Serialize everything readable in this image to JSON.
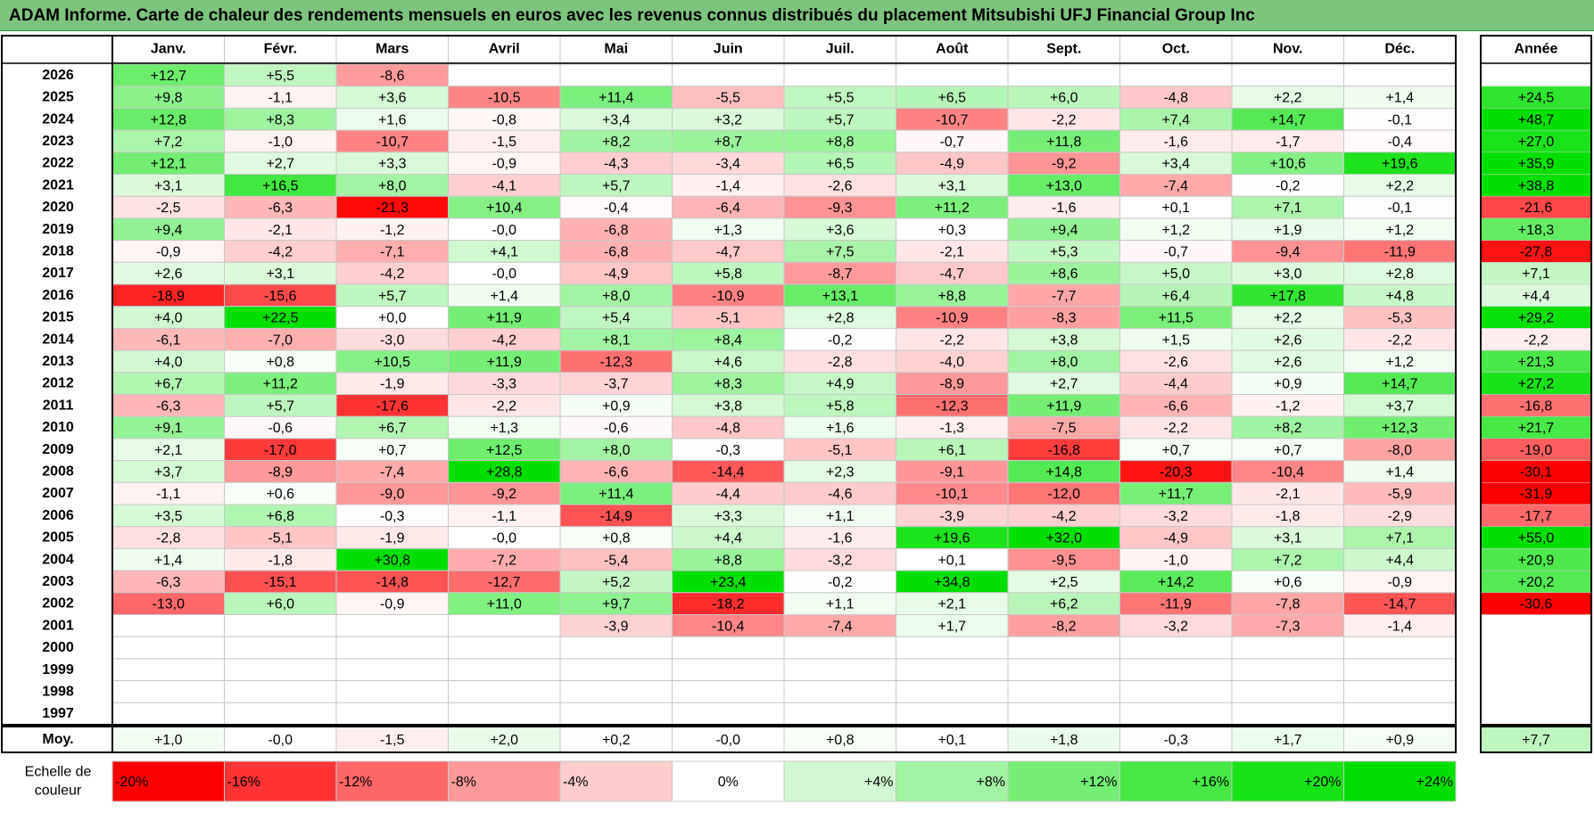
{
  "title": "ADAM Informe. Carte de chaleur des rendements mensuels en euros avec les revenus connus distribués du placement Mitsubishi UFJ Financial Group Inc",
  "colors": {
    "title_bg": "#7cc57c",
    "positive": "#00e000",
    "negative": "#ff0000",
    "grid": "#c8c8c8",
    "frame": "#000000"
  },
  "chart_data": {
    "type": "heatmap",
    "title": "ADAM Informe. Carte de chaleur des rendements mensuels en euros avec les revenus connus distribués du placement Mitsubishi UFJ Financial Group Inc",
    "months": [
      "Janv.",
      "Févr.",
      "Mars",
      "Avril",
      "Mai",
      "Juin",
      "Juil.",
      "Août",
      "Sept.",
      "Oct.",
      "Nov.",
      "Déc."
    ],
    "year_header": "Année",
    "rows": [
      {
        "year": "2026",
        "values": [
          "+12,7",
          "+5,5",
          "-8,6",
          "",
          "",
          "",
          "",
          "",
          "",
          "",
          "",
          ""
        ],
        "annual": ""
      },
      {
        "year": "2025",
        "values": [
          "+9,8",
          "-1,1",
          "+3,6",
          "-10,5",
          "+11,4",
          "-5,5",
          "+5,5",
          "+6,5",
          "+6,0",
          "-4,8",
          "+2,2",
          "+1,4"
        ],
        "annual": "+24,5"
      },
      {
        "year": "2024",
        "values": [
          "+12,8",
          "+8,3",
          "+1,6",
          "-0,8",
          "+3,4",
          "+3,2",
          "+5,7",
          "-10,7",
          "-2,2",
          "+7,4",
          "+14,7",
          "-0,1"
        ],
        "annual": "+48,7"
      },
      {
        "year": "2023",
        "values": [
          "+7,2",
          "-1,0",
          "-10,7",
          "-1,5",
          "+8,2",
          "+8,7",
          "+8,8",
          "-0,7",
          "+11,8",
          "-1,6",
          "-1,7",
          "-0,4"
        ],
        "annual": "+27,0"
      },
      {
        "year": "2022",
        "values": [
          "+12,1",
          "+2,7",
          "+3,3",
          "-0,9",
          "-4,3",
          "-3,4",
          "+6,5",
          "-4,9",
          "-9,2",
          "+3,4",
          "+10,6",
          "+19,6"
        ],
        "annual": "+35,9"
      },
      {
        "year": "2021",
        "values": [
          "+3,1",
          "+16,5",
          "+8,0",
          "-4,1",
          "+5,7",
          "-1,4",
          "-2,6",
          "+3,1",
          "+13,0",
          "-7,4",
          "-0,2",
          "+2,2"
        ],
        "annual": "+38,8"
      },
      {
        "year": "2020",
        "values": [
          "-2,5",
          "-6,3",
          "-21,3",
          "+10,4",
          "-0,4",
          "-6,4",
          "-9,3",
          "+11,2",
          "-1,6",
          "+0,1",
          "+7,1",
          "-0,1"
        ],
        "annual": "-21,6"
      },
      {
        "year": "2019",
        "values": [
          "+9,4",
          "-2,1",
          "-1,2",
          "-0,0",
          "-6,8",
          "+1,3",
          "+3,6",
          "+0,3",
          "+9,4",
          "+1,2",
          "+1,9",
          "+1,2"
        ],
        "annual": "+18,3"
      },
      {
        "year": "2018",
        "values": [
          "-0,9",
          "-4,2",
          "-7,1",
          "+4,1",
          "-6,8",
          "-4,7",
          "+7,5",
          "-2,1",
          "+5,3",
          "-0,7",
          "-9,4",
          "-11,9"
        ],
        "annual": "-27,8"
      },
      {
        "year": "2017",
        "values": [
          "+2,6",
          "+3,1",
          "-4,2",
          "-0,0",
          "-4,9",
          "+5,8",
          "-8,7",
          "-4,7",
          "+8,6",
          "+5,0",
          "+3,0",
          "+2,8"
        ],
        "annual": "+7,1"
      },
      {
        "year": "2016",
        "values": [
          "-18,9",
          "-15,6",
          "+5,7",
          "+1,4",
          "+8,0",
          "-10,9",
          "+13,1",
          "+8,8",
          "-7,7",
          "+6,4",
          "+17,8",
          "+4,8"
        ],
        "annual": "+4,4"
      },
      {
        "year": "2015",
        "values": [
          "+4,0",
          "+22,5",
          "+0,0",
          "+11,9",
          "+5,4",
          "-5,1",
          "+2,8",
          "-10,9",
          "-8,3",
          "+11,5",
          "+2,2",
          "-5,3"
        ],
        "annual": "+29,2"
      },
      {
        "year": "2014",
        "values": [
          "-6,1",
          "-7,0",
          "-3,0",
          "-4,2",
          "+8,1",
          "+8,4",
          "-0,2",
          "-2,2",
          "+3,8",
          "+1,5",
          "+2,6",
          "-2,2"
        ],
        "annual": "-2,2"
      },
      {
        "year": "2013",
        "values": [
          "+4,0",
          "+0,8",
          "+10,5",
          "+11,9",
          "-12,3",
          "+4,6",
          "-2,8",
          "-4,0",
          "+8,0",
          "-2,6",
          "+2,6",
          "+1,2"
        ],
        "annual": "+21,3"
      },
      {
        "year": "2012",
        "values": [
          "+6,7",
          "+11,2",
          "-1,9",
          "-3,3",
          "-3,7",
          "+8,3",
          "+4,9",
          "-8,9",
          "+2,7",
          "-4,4",
          "+0,9",
          "+14,7"
        ],
        "annual": "+27,2"
      },
      {
        "year": "2011",
        "values": [
          "-6,3",
          "+5,7",
          "-17,6",
          "-2,2",
          "+0,9",
          "+3,8",
          "+5,8",
          "-12,3",
          "+11,9",
          "-6,6",
          "-1,2",
          "+3,7"
        ],
        "annual": "-16,8"
      },
      {
        "year": "2010",
        "values": [
          "+9,1",
          "-0,6",
          "+6,7",
          "+1,3",
          "-0,6",
          "-4,8",
          "+1,6",
          "-1,3",
          "-7,5",
          "-2,2",
          "+8,2",
          "+12,3"
        ],
        "annual": "+21,7"
      },
      {
        "year": "2009",
        "values": [
          "+2,1",
          "-17,0",
          "+0,7",
          "+12,5",
          "+8,0",
          "-0,3",
          "-5,1",
          "+6,1",
          "-16,8",
          "+0,7",
          "+0,7",
          "-8,0"
        ],
        "annual": "-19,0"
      },
      {
        "year": "2008",
        "values": [
          "+3,7",
          "-8,9",
          "-7,4",
          "+28,8",
          "-6,6",
          "-14,4",
          "+2,3",
          "-9,1",
          "+14,8",
          "-20,3",
          "-10,4",
          "+1,4"
        ],
        "annual": "-30,1"
      },
      {
        "year": "2007",
        "values": [
          "-1,1",
          "+0,6",
          "-9,0",
          "-9,2",
          "+11,4",
          "-4,4",
          "-4,6",
          "-10,1",
          "-12,0",
          "+11,7",
          "-2,1",
          "-5,9"
        ],
        "annual": "-31,9"
      },
      {
        "year": "2006",
        "values": [
          "+3,5",
          "+6,8",
          "-0,3",
          "-1,1",
          "-14,9",
          "+3,3",
          "+1,1",
          "-3,9",
          "-4,2",
          "-3,2",
          "-1,8",
          "-2,9"
        ],
        "annual": "-17,7"
      },
      {
        "year": "2005",
        "values": [
          "-2,8",
          "-5,1",
          "-1,9",
          "-0,0",
          "+0,8",
          "+4,4",
          "-1,6",
          "+19,6",
          "+32,0",
          "-4,9",
          "+3,1",
          "+7,1"
        ],
        "annual": "+55,0"
      },
      {
        "year": "2004",
        "values": [
          "+1,4",
          "-1,8",
          "+30,8",
          "-7,2",
          "-5,4",
          "+8,8",
          "-3,2",
          "+0,1",
          "-9,5",
          "-1,0",
          "+7,2",
          "+4,4"
        ],
        "annual": "+20,9"
      },
      {
        "year": "2003",
        "values": [
          "-6,3",
          "-15,1",
          "-14,8",
          "-12,7",
          "+5,2",
          "+23,4",
          "-0,2",
          "+34,8",
          "+2,5",
          "+14,2",
          "+0,6",
          "-0,9"
        ],
        "annual": "+20,2"
      },
      {
        "year": "2002",
        "values": [
          "-13,0",
          "+6,0",
          "-0,9",
          "+11,0",
          "+9,7",
          "-18,2",
          "+1,1",
          "+2,1",
          "+6,2",
          "-11,9",
          "-7,8",
          "-14,7"
        ],
        "annual": "-30,6"
      },
      {
        "year": "2001",
        "values": [
          "",
          "",
          "",
          "",
          "-3,9",
          "-10,4",
          "-7,4",
          "+1,7",
          "-8,2",
          "-3,2",
          "-7,3",
          "-1,4"
        ],
        "annual": ""
      },
      {
        "year": "2000",
        "values": [
          "",
          "",
          "",
          "",
          "",
          "",
          "",
          "",
          "",
          "",
          "",
          ""
        ],
        "annual": ""
      },
      {
        "year": "1999",
        "values": [
          "",
          "",
          "",
          "",
          "",
          "",
          "",
          "",
          "",
          "",
          "",
          ""
        ],
        "annual": ""
      },
      {
        "year": "1998",
        "values": [
          "",
          "",
          "",
          "",
          "",
          "",
          "",
          "",
          "",
          "",
          "",
          ""
        ],
        "annual": ""
      },
      {
        "year": "1997",
        "values": [
          "",
          "",
          "",
          "",
          "",
          "",
          "",
          "",
          "",
          "",
          "",
          ""
        ],
        "annual": ""
      }
    ],
    "average": {
      "label": "Moy.",
      "values": [
        "+1,0",
        "-0,0",
        "-1,5",
        "+2,0",
        "+0,2",
        "-0,0",
        "+0,8",
        "+0,1",
        "+1,8",
        "-0,3",
        "+1,7",
        "+0,9"
      ],
      "annual": "+7,7"
    },
    "scale": {
      "label_line1": "Echelle de",
      "label_line2": "couleur",
      "steps": [
        "-20%",
        "-16%",
        "-12%",
        "-8%",
        "-4%",
        "0%",
        "+4%",
        "+8%",
        "+12%",
        "+16%",
        "+20%",
        "+24%"
      ]
    }
  }
}
